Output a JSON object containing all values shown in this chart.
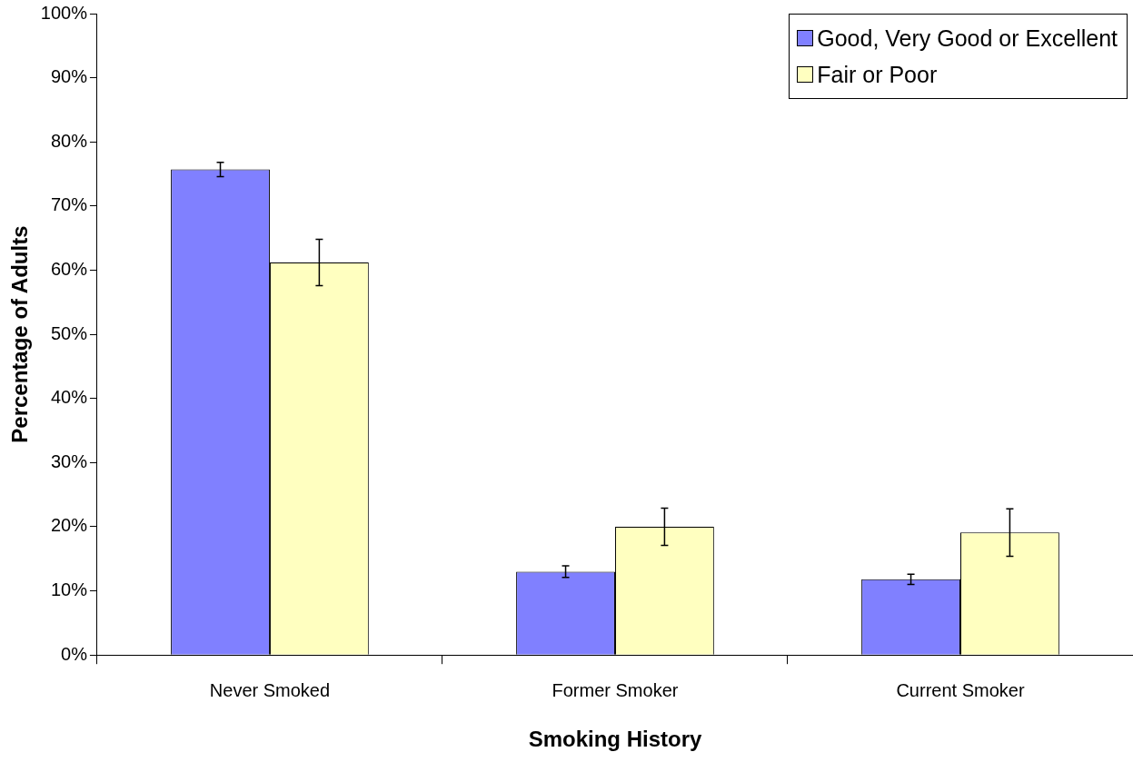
{
  "chart_data": {
    "type": "bar",
    "xlabel": "Smoking History",
    "ylabel": "Percentage of Adults",
    "categories": [
      "Never Smoked",
      "Former Smoker",
      "Current Smoker"
    ],
    "series": [
      {
        "name": "Good, Very Good or Excellent",
        "color": "#8080ff",
        "values": [
          75.7,
          13.0,
          11.8
        ],
        "errors": [
          1.1,
          0.9,
          0.8
        ]
      },
      {
        "name": "Fair or Poor",
        "color": "#ffffc0",
        "values": [
          61.2,
          20.0,
          19.1
        ],
        "errors": [
          3.6,
          2.9,
          3.7
        ]
      }
    ],
    "ylim": [
      0,
      100
    ],
    "yticks": [
      {
        "value": 0,
        "label": "0%"
      },
      {
        "value": 10,
        "label": "10%"
      },
      {
        "value": 20,
        "label": "20%"
      },
      {
        "value": 30,
        "label": "30%"
      },
      {
        "value": 40,
        "label": "40%"
      },
      {
        "value": 50,
        "label": "50%"
      },
      {
        "value": 60,
        "label": "60%"
      },
      {
        "value": 70,
        "label": "70%"
      },
      {
        "value": 80,
        "label": "80%"
      },
      {
        "value": 90,
        "label": "90%"
      },
      {
        "value": 100,
        "label": "100%"
      }
    ],
    "grid": false,
    "legend": "top right"
  }
}
